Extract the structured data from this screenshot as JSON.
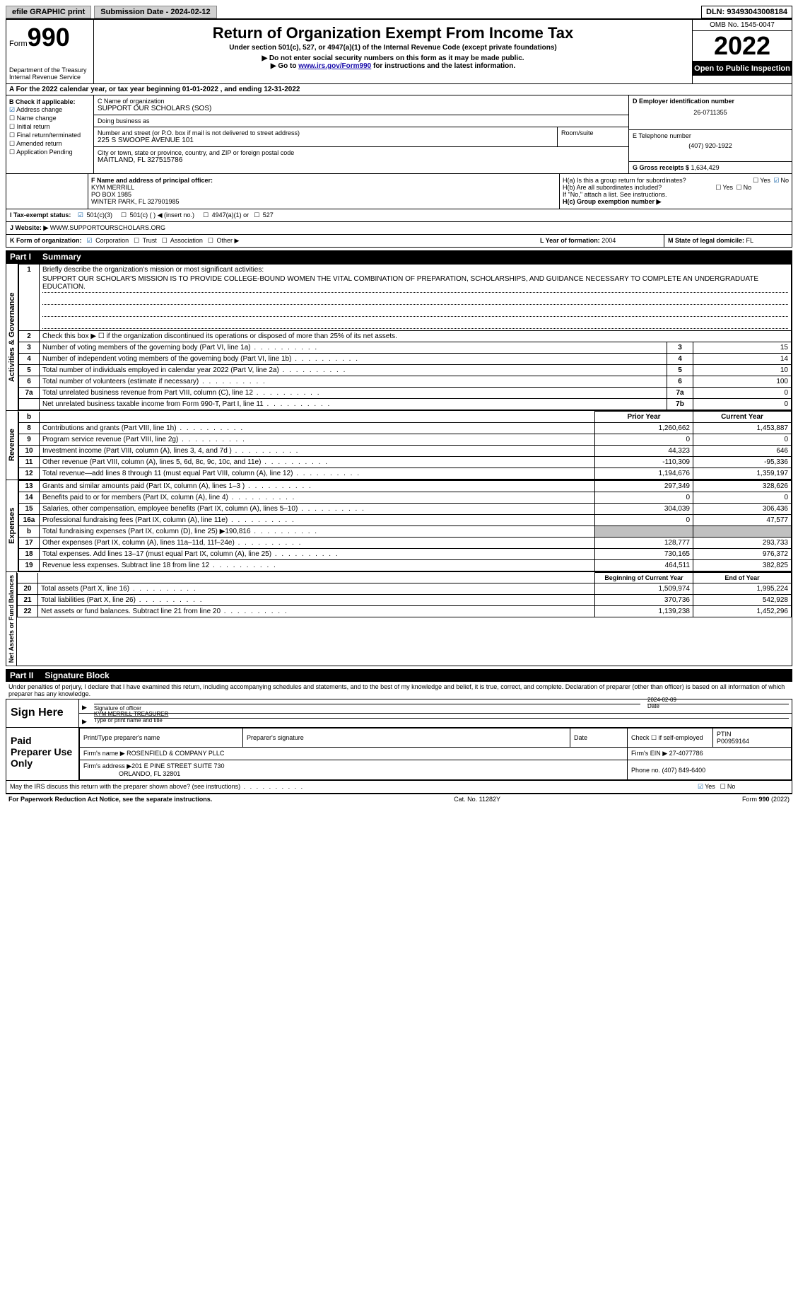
{
  "topbar": {
    "efile": "efile GRAPHIC print",
    "submission_label": "Submission Date - ",
    "submission_date": "2024-02-12",
    "dln_label": "DLN: ",
    "dln": "93493043008184"
  },
  "header": {
    "form_word": "Form",
    "form_num": "990",
    "dept": "Department of the Treasury\nInternal Revenue Service",
    "title": "Return of Organization Exempt From Income Tax",
    "subtitle": "Under section 501(c), 527, or 4947(a)(1) of the Internal Revenue Code (except private foundations)",
    "note1": "▶ Do not enter social security numbers on this form as it may be made public.",
    "note2_pre": "▶ Go to ",
    "note2_link": "www.irs.gov/Form990",
    "note2_post": " for instructions and the latest information.",
    "omb": "OMB No. 1545-0047",
    "year": "2022",
    "open": "Open to Public Inspection"
  },
  "sectionA": "A  For the 2022 calendar year, or tax year beginning 01-01-2022    , and ending 12-31-2022",
  "colB": {
    "title": "B Check if applicable:",
    "items": [
      "Address change",
      "Name change",
      "Initial return",
      "Final return/terminated",
      "Amended return",
      "Application Pending"
    ],
    "checked_index": 0
  },
  "colC": {
    "name_lbl": "C Name of organization",
    "name": "SUPPORT OUR SCHOLARS (SOS)",
    "dba_lbl": "Doing business as",
    "dba": "",
    "street_lbl": "Number and street (or P.O. box if mail is not delivered to street address)",
    "room_lbl": "Room/suite",
    "street": "225 S SWOOPE AVENUE 101",
    "city_lbl": "City or town, state or province, country, and ZIP or foreign postal code",
    "city": "MAITLAND, FL  327515786"
  },
  "colD": {
    "ein_lbl": "D Employer identification number",
    "ein": "26-0711355",
    "phone_lbl": "E Telephone number",
    "phone": "(407) 920-1922",
    "gross_lbl": "G Gross receipts $ ",
    "gross": "1,634,429"
  },
  "rowF": {
    "lbl": "F  Name and address of principal officer:",
    "name": "KYM MERRILL",
    "addr1": "PO BOX 1985",
    "addr2": "WINTER PARK, FL  327901985"
  },
  "rowH": {
    "a": "H(a)  Is this a group return for subordinates?",
    "a_yes": "Yes",
    "a_no": "No",
    "b": "H(b)  Are all subordinates included?",
    "b_note": "If \"No,\" attach a list. See instructions.",
    "c": "H(c)  Group exemption number ▶"
  },
  "rowI": {
    "lbl": "I    Tax-exempt status:",
    "o1": "501(c)(3)",
    "o2": "501(c) (  ) ◀ (insert no.)",
    "o3": "4947(a)(1) or",
    "o4": "527"
  },
  "rowJ": {
    "lbl": "J   Website: ▶  ",
    "val": "WWW.SUPPORTOURSCHOLARS.ORG"
  },
  "rowK": {
    "lbl": "K Form of organization:",
    "opts": [
      "Corporation",
      "Trust",
      "Association",
      "Other ▶"
    ],
    "L_lbl": "L Year of formation: ",
    "L_val": "2004",
    "M_lbl": "M State of legal domicile: ",
    "M_val": "FL"
  },
  "part1": {
    "title": "Part I",
    "name": "Summary",
    "line1_lbl": "Briefly describe the organization's mission or most significant activities:",
    "mission": "SUPPORT OUR SCHOLAR'S MISSION IS TO PROVIDE COLLEGE-BOUND WOMEN THE VITAL COMBINATION OF PREPARATION, SCHOLARSHIPS, AND GUIDANCE NECESSARY TO COMPLETE AN UNDERGRADUATE EDUCATION.",
    "line2": "Check this box ▶ ☐  if the organization discontinued its operations or disposed of more than 25% of its net assets.",
    "rows_simple": [
      {
        "n": "3",
        "desc": "Number of voting members of the governing body (Part VI, line 1a)",
        "box": "3",
        "val": "15"
      },
      {
        "n": "4",
        "desc": "Number of independent voting members of the governing body (Part VI, line 1b)",
        "box": "4",
        "val": "14"
      },
      {
        "n": "5",
        "desc": "Total number of individuals employed in calendar year 2022 (Part V, line 2a)",
        "box": "5",
        "val": "10"
      },
      {
        "n": "6",
        "desc": "Total number of volunteers (estimate if necessary)",
        "box": "6",
        "val": "100"
      },
      {
        "n": "7a",
        "desc": "Total unrelated business revenue from Part VIII, column (C), line 12",
        "box": "7a",
        "val": "0"
      },
      {
        "n": "",
        "desc": "Net unrelated business taxable income from Form 990-T, Part I, line 11",
        "box": "7b",
        "val": "0"
      }
    ],
    "col_hdr_prior": "Prior Year",
    "col_hdr_curr": "Current Year",
    "revenue": [
      {
        "n": "8",
        "desc": "Contributions and grants (Part VIII, line 1h)",
        "prior": "1,260,662",
        "curr": "1,453,887"
      },
      {
        "n": "9",
        "desc": "Program service revenue (Part VIII, line 2g)",
        "prior": "0",
        "curr": "0"
      },
      {
        "n": "10",
        "desc": "Investment income (Part VIII, column (A), lines 3, 4, and 7d )",
        "prior": "44,323",
        "curr": "646"
      },
      {
        "n": "11",
        "desc": "Other revenue (Part VIII, column (A), lines 5, 6d, 8c, 9c, 10c, and 11e)",
        "prior": "-110,309",
        "curr": "-95,336"
      },
      {
        "n": "12",
        "desc": "Total revenue—add lines 8 through 11 (must equal Part VIII, column (A), line 12)",
        "prior": "1,194,676",
        "curr": "1,359,197"
      }
    ],
    "expenses": [
      {
        "n": "13",
        "desc": "Grants and similar amounts paid (Part IX, column (A), lines 1–3 )",
        "prior": "297,349",
        "curr": "328,626"
      },
      {
        "n": "14",
        "desc": "Benefits paid to or for members (Part IX, column (A), line 4)",
        "prior": "0",
        "curr": "0"
      },
      {
        "n": "15",
        "desc": "Salaries, other compensation, employee benefits (Part IX, column (A), lines 5–10)",
        "prior": "304,039",
        "curr": "306,436"
      },
      {
        "n": "16a",
        "desc": "Professional fundraising fees (Part IX, column (A), line 11e)",
        "prior": "0",
        "curr": "47,577"
      },
      {
        "n": "b",
        "desc": "Total fundraising expenses (Part IX, column (D), line 25) ▶190,816",
        "prior": "",
        "curr": "",
        "shade": true
      },
      {
        "n": "17",
        "desc": "Other expenses (Part IX, column (A), lines 11a–11d, 11f–24e)",
        "prior": "128,777",
        "curr": "293,733"
      },
      {
        "n": "18",
        "desc": "Total expenses. Add lines 13–17 (must equal Part IX, column (A), line 25)",
        "prior": "730,165",
        "curr": "976,372"
      },
      {
        "n": "19",
        "desc": "Revenue less expenses. Subtract line 18 from line 12",
        "prior": "464,511",
        "curr": "382,825"
      }
    ],
    "net_hdr_begin": "Beginning of Current Year",
    "net_hdr_end": "End of Year",
    "netassets": [
      {
        "n": "20",
        "desc": "Total assets (Part X, line 16)",
        "prior": "1,509,974",
        "curr": "1,995,224"
      },
      {
        "n": "21",
        "desc": "Total liabilities (Part X, line 26)",
        "prior": "370,736",
        "curr": "542,928"
      },
      {
        "n": "22",
        "desc": "Net assets or fund balances. Subtract line 21 from line 20",
        "prior": "1,139,238",
        "curr": "1,452,296"
      }
    ]
  },
  "part2": {
    "title": "Part II",
    "name": "Signature Block",
    "declaration": "Under penalties of perjury, I declare that I have examined this return, including accompanying schedules and statements, and to the best of my knowledge and belief, it is true, correct, and complete. Declaration of preparer (other than officer) is based on all information of which preparer has any knowledge.",
    "sign_here": "Sign Here",
    "sig_officer": "Signature of officer",
    "sig_date": "2024-02-09",
    "date_lbl": "Date",
    "officer_name": "KYM MERRILL TREASURER",
    "type_name_lbl": "Type or print name and title",
    "paid_prep": "Paid Preparer Use Only",
    "prep_name_lbl": "Print/Type preparer's name",
    "prep_sig_lbl": "Preparer's signature",
    "check_self": "Check ☐ if self-employed",
    "ptin_lbl": "PTIN",
    "ptin": "P00959164",
    "firm_name_lbl": "Firm's name   ▶ ",
    "firm_name": "ROSENFIELD & COMPANY PLLC",
    "firm_ein_lbl": "Firm's EIN ▶ ",
    "firm_ein": "27-4077786",
    "firm_addr_lbl": "Firm's address ▶",
    "firm_addr1": "201 E PINE STREET SUITE 730",
    "firm_addr2": "ORLANDO, FL  32801",
    "phone_lbl": "Phone no. ",
    "phone": "(407) 849-6400",
    "discuss": "May the IRS discuss this return with the preparer shown above? (see instructions)",
    "d_yes": "Yes",
    "d_no": "No"
  },
  "footer": {
    "pra": "For Paperwork Reduction Act Notice, see the separate instructions.",
    "cat": "Cat. No. 11282Y",
    "form": "Form 990 (2022)"
  },
  "side_labels": {
    "gov": "Activities & Governance",
    "rev": "Revenue",
    "exp": "Expenses",
    "net": "Net Assets or Fund Balances"
  }
}
